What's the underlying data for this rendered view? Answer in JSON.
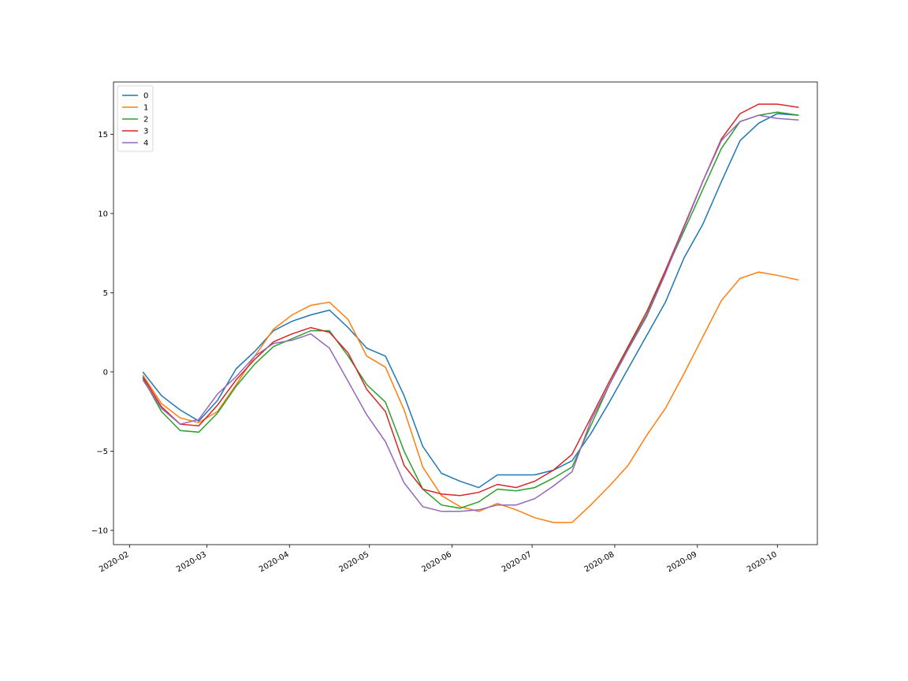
{
  "chart_data": {
    "type": "line",
    "title": "",
    "xlabel": "",
    "ylabel": "",
    "grid": false,
    "legend_placement": "top-left",
    "xlim": [
      "2020-01-26",
      "2020-10-16"
    ],
    "ylim": [
      -10.9,
      18.3
    ],
    "x_ticks": [
      "2020-02-01",
      "2020-03-01",
      "2020-04-01",
      "2020-05-01",
      "2020-06-01",
      "2020-07-01",
      "2020-08-01",
      "2020-09-01",
      "2020-10-01"
    ],
    "x_tick_labels": [
      "2020-02",
      "2020-03",
      "2020-04",
      "2020-05",
      "2020-06",
      "2020-07",
      "2020-08",
      "2020-09",
      "2020-10"
    ],
    "y_ticks": [
      -10,
      -5,
      0,
      5,
      10,
      15
    ],
    "y_tick_labels": [
      "−10",
      "−5",
      "0",
      "5",
      "10",
      "15"
    ],
    "x": [
      "2020-02-06",
      "2020-02-13",
      "2020-02-20",
      "2020-02-27",
      "2020-03-05",
      "2020-03-12",
      "2020-03-19",
      "2020-03-26",
      "2020-04-02",
      "2020-04-09",
      "2020-04-16",
      "2020-04-23",
      "2020-04-30",
      "2020-05-07",
      "2020-05-14",
      "2020-05-21",
      "2020-05-28",
      "2020-06-04",
      "2020-06-11",
      "2020-06-18",
      "2020-06-25",
      "2020-07-02",
      "2020-07-09",
      "2020-07-16",
      "2020-07-23",
      "2020-07-30",
      "2020-08-06",
      "2020-08-13",
      "2020-08-20",
      "2020-08-27",
      "2020-09-03",
      "2020-09-10",
      "2020-09-17",
      "2020-09-24",
      "2020-10-01",
      "2020-10-09"
    ],
    "series": [
      {
        "name": "0",
        "color": "#1f77b4",
        "values": [
          0.0,
          -1.5,
          -2.4,
          -3.1,
          -1.8,
          0.2,
          1.3,
          2.6,
          3.2,
          3.6,
          3.9,
          2.8,
          1.5,
          1.0,
          -1.5,
          -4.7,
          -6.4,
          -6.9,
          -7.3,
          -6.5,
          -6.5,
          -6.5,
          -6.2,
          -5.6,
          -3.9,
          -1.9,
          0.2,
          2.3,
          4.4,
          7.2,
          9.3,
          12.0,
          14.6,
          15.7,
          16.3,
          16.2
        ]
      },
      {
        "name": "1",
        "color": "#ff7f0e",
        "values": [
          -0.2,
          -2.0,
          -2.9,
          -3.2,
          -2.5,
          -0.8,
          1.0,
          2.7,
          3.6,
          4.2,
          4.4,
          3.3,
          1.0,
          0.3,
          -2.4,
          -6.0,
          -7.8,
          -8.5,
          -8.8,
          -8.3,
          -8.7,
          -9.2,
          -9.5,
          -9.5,
          -8.4,
          -7.2,
          -5.9,
          -4.0,
          -2.3,
          -0.1,
          2.2,
          4.5,
          5.9,
          6.3,
          6.1,
          5.8
        ]
      },
      {
        "name": "2",
        "color": "#2ca02c",
        "values": [
          -0.4,
          -2.5,
          -3.7,
          -3.8,
          -2.6,
          -0.9,
          0.5,
          1.6,
          2.1,
          2.6,
          2.6,
          1.0,
          -0.8,
          -1.9,
          -5.0,
          -7.4,
          -8.4,
          -8.6,
          -8.2,
          -7.4,
          -7.5,
          -7.3,
          -6.7,
          -6.0,
          -3.4,
          -0.8,
          1.5,
          3.6,
          6.3,
          8.9,
          11.5,
          14.1,
          15.8,
          16.2,
          16.4,
          16.2
        ]
      },
      {
        "name": "3",
        "color": "#d62728",
        "values": [
          -0.3,
          -2.2,
          -3.3,
          -3.4,
          -2.1,
          -0.5,
          0.8,
          1.9,
          2.4,
          2.8,
          2.5,
          1.2,
          -1.1,
          -2.5,
          -5.9,
          -7.4,
          -7.7,
          -7.8,
          -7.6,
          -7.1,
          -7.3,
          -6.9,
          -6.2,
          -5.2,
          -2.9,
          -0.6,
          1.6,
          3.8,
          6.4,
          9.2,
          12.0,
          14.7,
          16.3,
          16.9,
          16.9,
          16.7
        ]
      },
      {
        "name": "4",
        "color": "#9467bd",
        "values": [
          -0.5,
          -2.3,
          -3.3,
          -3.0,
          -1.4,
          -0.3,
          1.0,
          1.8,
          2.0,
          2.4,
          1.5,
          -0.6,
          -2.7,
          -4.4,
          -7.0,
          -8.5,
          -8.8,
          -8.8,
          -8.7,
          -8.4,
          -8.4,
          -8.0,
          -7.2,
          -6.3,
          -3.1,
          -0.8,
          1.4,
          3.5,
          6.2,
          9.1,
          12.0,
          14.6,
          15.8,
          16.2,
          16.0,
          15.9
        ]
      }
    ]
  }
}
